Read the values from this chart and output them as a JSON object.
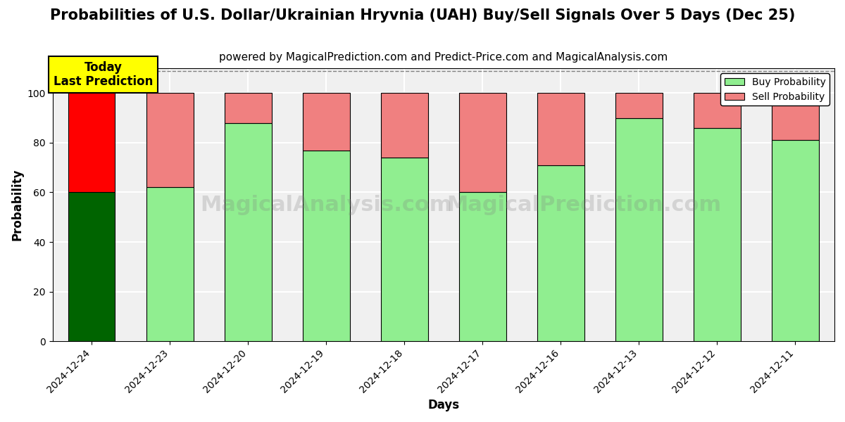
{
  "title": "Probabilities of U.S. Dollar/Ukrainian Hryvnia (UAH) Buy/Sell Signals Over 5 Days (Dec 25)",
  "subtitle": "powered by MagicalPrediction.com and Predict-Price.com and MagicalAnalysis.com",
  "xlabel": "Days",
  "ylabel": "Probability",
  "categories": [
    "2024-12-24",
    "2024-12-23",
    "2024-12-20",
    "2024-12-19",
    "2024-12-18",
    "2024-12-17",
    "2024-12-16",
    "2024-12-13",
    "2024-12-12",
    "2024-12-11"
  ],
  "buy_values": [
    60,
    62,
    88,
    77,
    74,
    60,
    71,
    90,
    86,
    81
  ],
  "sell_values": [
    40,
    38,
    12,
    23,
    26,
    40,
    29,
    10,
    14,
    19
  ],
  "today_bar_buy_color": "#006400",
  "today_bar_sell_color": "#FF0000",
  "normal_bar_buy_color": "#90EE90",
  "normal_bar_sell_color": "#F08080",
  "bar_edge_color": "#000000",
  "ylim": [
    0,
    110
  ],
  "yticks": [
    0,
    20,
    40,
    60,
    80,
    100
  ],
  "dashed_line_y": 109,
  "watermark1": "MagicalAnalysis.com",
  "watermark2": "MagicalPrediction.com",
  "legend_buy_label": "Buy Probability",
  "legend_sell_label": "Sell Probability",
  "today_label": "Today\nLast Prediction",
  "title_fontsize": 15,
  "subtitle_fontsize": 11,
  "label_fontsize": 12,
  "tick_fontsize": 10,
  "background_color": "#ffffff",
  "grid_color": "#ffffff",
  "plot_bg_color": "#f0f0f0"
}
